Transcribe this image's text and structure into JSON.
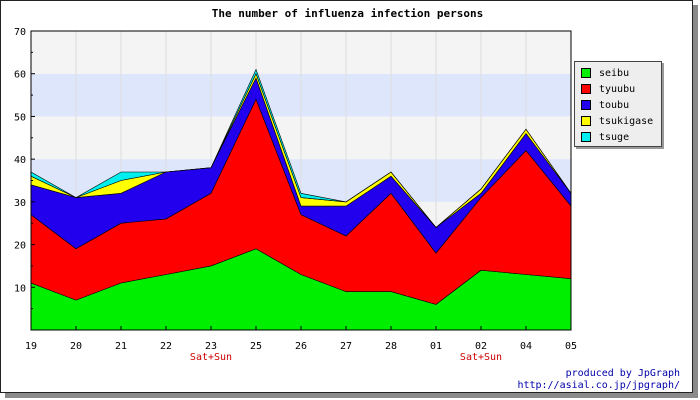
{
  "chart_data": {
    "type": "area",
    "title": "The number of influenza infection persons",
    "categories": [
      "19",
      "20",
      "21",
      "22",
      "23",
      "25",
      "26",
      "27",
      "28",
      "01",
      "02",
      "04",
      "05"
    ],
    "category_notes": {
      "23": "Sat+Sun",
      "02": "Sat+Sun"
    },
    "stacked": true,
    "ylim": [
      0,
      70
    ],
    "yticks": [
      10,
      20,
      30,
      40,
      50,
      60,
      70
    ],
    "xlabel": "",
    "ylabel": "",
    "legend_position": "right",
    "grid": true,
    "series": [
      {
        "name": "seibu",
        "color": "#00ee00",
        "values": [
          11,
          7,
          11,
          13,
          15,
          19,
          13,
          9,
          9,
          6,
          14,
          13,
          12
        ]
      },
      {
        "name": "tyuubu",
        "color": "#ff0000",
        "values": [
          16,
          12,
          14,
          13,
          17,
          35,
          14,
          13,
          23,
          12,
          17,
          29,
          17
        ]
      },
      {
        "name": "toubu",
        "color": "#2200ee",
        "values": [
          7,
          12,
          7,
          11,
          6,
          5,
          2,
          7,
          4,
          6,
          1,
          4,
          3
        ]
      },
      {
        "name": "tsukigase",
        "color": "#ffff00",
        "values": [
          2,
          0,
          3,
          0,
          0,
          1,
          2,
          1,
          1,
          0,
          1,
          1,
          0
        ]
      },
      {
        "name": "tsuge",
        "color": "#00eeee",
        "values": [
          1,
          0,
          2,
          0,
          0,
          1,
          1,
          0,
          0,
          0,
          0,
          0,
          0
        ]
      }
    ]
  },
  "credit": {
    "line1": "produced by JpGraph",
    "line2": "http://asial.co.jp/jpgraph/"
  }
}
